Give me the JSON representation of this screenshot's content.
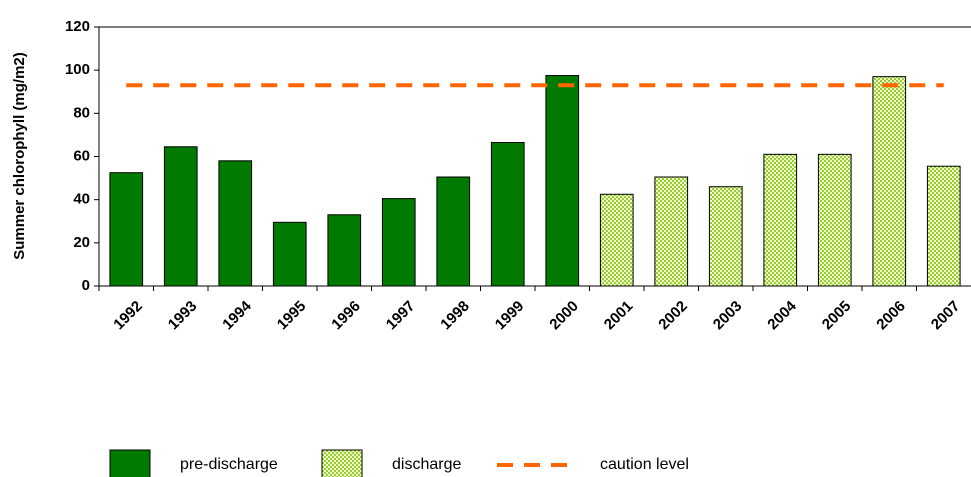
{
  "chart_data": {
    "type": "bar",
    "y_label": "Summer chlorophyll (mg/m2)",
    "categories": [
      "1992",
      "1993",
      "1994",
      "1995",
      "1996",
      "1997",
      "1998",
      "1999",
      "2000",
      "2001",
      "2002",
      "2003",
      "2004",
      "2005",
      "2006",
      "2007"
    ],
    "series": [
      {
        "name": "pre-discharge",
        "color": "#007a00",
        "values": [
          52.5,
          64.5,
          58,
          29.5,
          33,
          40.5,
          50.5,
          66.5,
          97.5,
          null,
          null,
          null,
          null,
          null,
          null,
          null
        ]
      },
      {
        "name": "discharge",
        "color": "#ccff66",
        "pattern": "checkered",
        "values": [
          null,
          null,
          null,
          null,
          null,
          null,
          null,
          null,
          null,
          42.5,
          50.5,
          46,
          61,
          61,
          97,
          55.5
        ]
      },
      {
        "name": "caution level",
        "type": "line",
        "color": "#ff6600",
        "dashed": true,
        "values": [
          93,
          93,
          93,
          93,
          93,
          93,
          93,
          93,
          93,
          93,
          93,
          93,
          93,
          93,
          93,
          93
        ]
      }
    ],
    "ylim": [
      0,
      120
    ],
    "yticks": [
      0,
      20,
      40,
      60,
      80,
      100,
      120
    ],
    "grid": false,
    "legend": "bottom"
  }
}
